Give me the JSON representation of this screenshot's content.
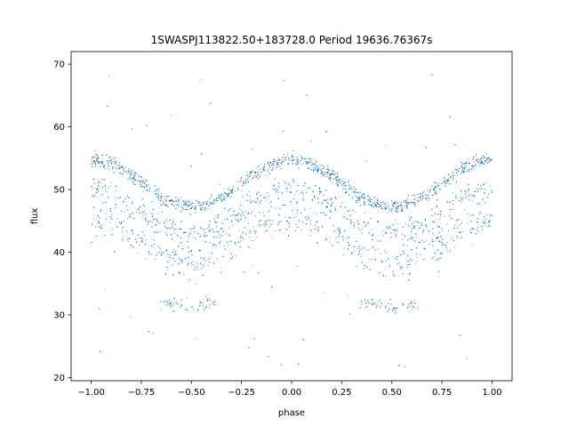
{
  "chart_data": {
    "type": "scatter",
    "title": "1SWASPJ113822.50+183728.0 Period 19636.76367s",
    "xlabel": "phase",
    "ylabel": "flux",
    "xlim": [
      -1.1,
      1.1
    ],
    "ylim": [
      19.5,
      72.0
    ],
    "xticks": [
      -1.0,
      -0.75,
      -0.5,
      -0.25,
      0.0,
      0.25,
      0.5,
      0.75,
      1.0
    ],
    "xtick_labels": [
      "−1.00",
      "−0.75",
      "−0.50",
      "−0.25",
      "0.00",
      "0.25",
      "0.50",
      "0.75",
      "1.00"
    ],
    "yticks": [
      20,
      30,
      40,
      50,
      60,
      70
    ],
    "ytick_labels": [
      "20",
      "30",
      "40",
      "50",
      "60",
      "70"
    ],
    "grid": false,
    "marker_color": "#1f77b4",
    "series": [
      {
        "x_range": [
          -1.0,
          1.0
        ],
        "bands": [
          {
            "mean": 51.0,
            "amplitude": 3.8,
            "spread": 0.8,
            "share": 0.45
          },
          {
            "mean": 46.5,
            "amplitude": 3.5,
            "spread": 1.4,
            "share": 0.25
          },
          {
            "mean": 42.0,
            "amplitude": 3.5,
            "spread": 1.8,
            "share": 0.22
          }
        ],
        "dips": [
          {
            "x": -0.52,
            "flux": 31.5
          },
          {
            "x": 0.48,
            "flux": 31.5
          }
        ],
        "outlier_range": [
          21.5,
          69.0
        ]
      }
    ]
  }
}
